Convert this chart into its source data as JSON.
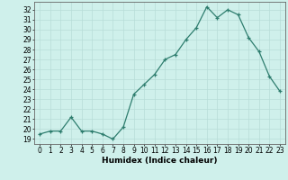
{
  "x": [
    0,
    1,
    2,
    3,
    4,
    5,
    6,
    7,
    8,
    9,
    10,
    11,
    12,
    13,
    14,
    15,
    16,
    17,
    18,
    19,
    20,
    21,
    22,
    23
  ],
  "y": [
    19.5,
    19.8,
    19.8,
    21.2,
    19.8,
    19.8,
    19.5,
    19.0,
    20.2,
    23.5,
    24.5,
    25.5,
    27.0,
    27.5,
    29.0,
    30.2,
    32.3,
    31.2,
    32.0,
    31.5,
    29.2,
    27.8,
    25.3,
    23.8
  ],
  "line_color": "#2e7d6e",
  "marker": "+",
  "markersize": 3.5,
  "linewidth": 0.9,
  "xlabel": "Humidex (Indice chaleur)",
  "bg_color": "#cff0eb",
  "grid_color": "#b8ddd8",
  "xlim": [
    -0.5,
    23.5
  ],
  "ylim": [
    18.5,
    32.8
  ],
  "yticks": [
    19,
    20,
    21,
    22,
    23,
    24,
    25,
    26,
    27,
    28,
    29,
    30,
    31,
    32
  ],
  "xticks": [
    0,
    1,
    2,
    3,
    4,
    5,
    6,
    7,
    8,
    9,
    10,
    11,
    12,
    13,
    14,
    15,
    16,
    17,
    18,
    19,
    20,
    21,
    22,
    23
  ],
  "tick_fontsize": 5.5,
  "xlabel_fontsize": 6.5
}
